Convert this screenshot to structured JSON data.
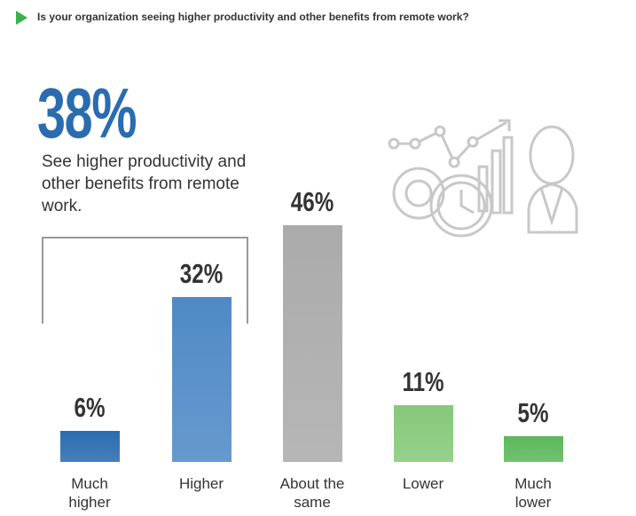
{
  "chart_data": {
    "type": "bar",
    "title": "Is your organization seeing higher productivity and other benefits from remote work?",
    "callout": {
      "figure": "38%",
      "text": "See higher productivity and other benefits from remote work."
    },
    "categories": [
      "Much higher",
      "Higher",
      "About the same",
      "Lower",
      "Much lower"
    ],
    "values": [
      6,
      32,
      46,
      11,
      5
    ],
    "value_labels": [
      "6%",
      "32%",
      "46%",
      "11%",
      "5%"
    ],
    "colors": [
      "#2a6cb0",
      "#4f8ac6",
      "#ababab",
      "#86c97a",
      "#5cb85a"
    ]
  }
}
